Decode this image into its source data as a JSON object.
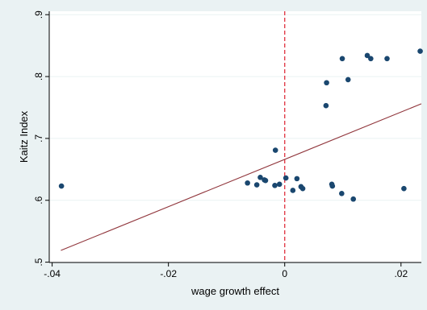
{
  "chart_data": {
    "type": "scatter",
    "xlabel": "wage growth effect",
    "ylabel": "Kaitz Index",
    "xlim": [
      -0.0405,
      0.0235
    ],
    "ylim": [
      0.4995,
      0.9055
    ],
    "xticks": [
      -0.04,
      -0.02,
      0,
      0.02
    ],
    "xtick_labels": [
      "-.04",
      "-.02",
      "0",
      ".02"
    ],
    "yticks": [
      0.5,
      0.6,
      0.7,
      0.8,
      0.9
    ],
    "ytick_labels": [
      ".5",
      ".6",
      ".7",
      ".8",
      ".9"
    ],
    "grid": "horizontal",
    "reference_line": {
      "x": 0,
      "style": "dashed"
    },
    "fit_line": {
      "x": [
        -0.0385,
        0.0235
      ],
      "y": [
        0.519,
        0.756
      ]
    },
    "points": [
      {
        "x": -0.0384,
        "y": 0.623
      },
      {
        "x": -0.0064,
        "y": 0.628
      },
      {
        "x": -0.0048,
        "y": 0.625
      },
      {
        "x": -0.0042,
        "y": 0.637
      },
      {
        "x": -0.0035,
        "y": 0.633
      },
      {
        "x": -0.0033,
        "y": 0.632
      },
      {
        "x": -0.0017,
        "y": 0.624
      },
      {
        "x": -0.0016,
        "y": 0.681
      },
      {
        "x": -0.0009,
        "y": 0.626
      },
      {
        "x": 0.0002,
        "y": 0.636
      },
      {
        "x": 0.0014,
        "y": 0.616
      },
      {
        "x": 0.0021,
        "y": 0.635
      },
      {
        "x": 0.0028,
        "y": 0.622
      },
      {
        "x": 0.0031,
        "y": 0.619
      },
      {
        "x": 0.0071,
        "y": 0.753
      },
      {
        "x": 0.0072,
        "y": 0.79
      },
      {
        "x": 0.0081,
        "y": 0.626
      },
      {
        "x": 0.0082,
        "y": 0.623
      },
      {
        "x": 0.0098,
        "y": 0.611
      },
      {
        "x": 0.0099,
        "y": 0.829
      },
      {
        "x": 0.0109,
        "y": 0.795
      },
      {
        "x": 0.0118,
        "y": 0.602
      },
      {
        "x": 0.0142,
        "y": 0.834
      },
      {
        "x": 0.0148,
        "y": 0.829
      },
      {
        "x": 0.0176,
        "y": 0.829
      },
      {
        "x": 0.0205,
        "y": 0.619
      },
      {
        "x": 0.0233,
        "y": 0.841
      }
    ],
    "colors": {
      "background": "#eaf2f3",
      "plot_area": "#ffffff",
      "points": "#1a476f",
      "fit_line": "#90353b",
      "reference_line": "#e0303e",
      "grid": "#eaf2f3"
    }
  }
}
